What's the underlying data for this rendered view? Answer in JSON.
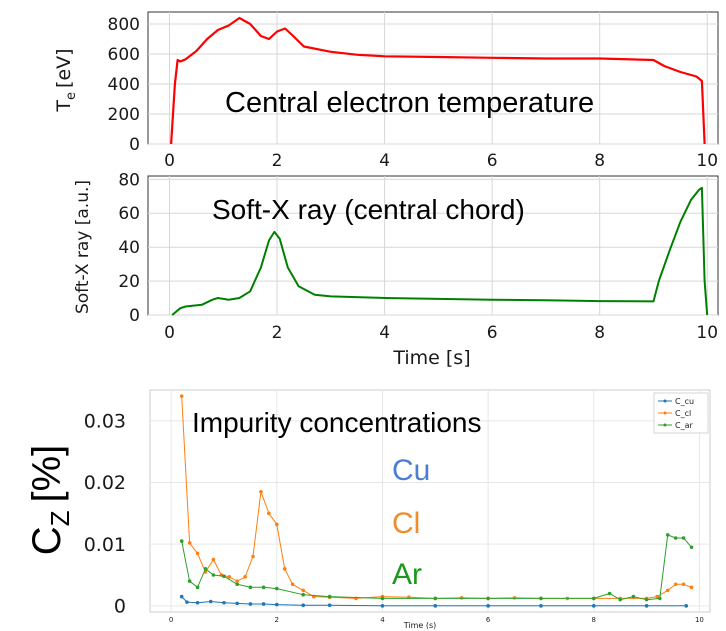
{
  "chart_data": [
    {
      "type": "line",
      "title": "Central electron temperature",
      "xlabel": "",
      "ylabel": "T_e [eV]",
      "ylabel_main": "T",
      "ylabel_sub": "e",
      "ylabel_unit": "[eV]",
      "xlim": [
        -0.4,
        10.2
      ],
      "ylim": [
        0,
        880
      ],
      "xticks": [
        0,
        2,
        4,
        6,
        8,
        10
      ],
      "xtick_labels": [
        "0",
        "2",
        "4",
        "6",
        "8",
        "10"
      ],
      "yticks": [
        0,
        200,
        400,
        600,
        800
      ],
      "ytick_labels": [
        "0",
        "200",
        "400",
        "600",
        "800"
      ],
      "grid": true,
      "series": [
        {
          "color": "#ff0000",
          "x": [
            0.03,
            0.1,
            0.15,
            0.2,
            0.3,
            0.5,
            0.7,
            0.9,
            1.1,
            1.3,
            1.5,
            1.7,
            1.85,
            2.0,
            2.15,
            2.3,
            2.5,
            3.0,
            3.5,
            4.0,
            5.0,
            6.0,
            7.0,
            8.0,
            9.0,
            9.2,
            9.5,
            9.8,
            9.9,
            9.95
          ],
          "values": [
            0,
            400,
            560,
            550,
            565,
            620,
            700,
            760,
            790,
            840,
            800,
            720,
            700,
            750,
            770,
            720,
            650,
            615,
            595,
            585,
            580,
            575,
            570,
            570,
            560,
            520,
            480,
            450,
            420,
            0
          ]
        }
      ]
    },
    {
      "type": "line",
      "title": "Soft-X ray (central chord)",
      "xlabel": "Time [s]",
      "ylabel": "Soft-X ray [a.u.]",
      "xlim": [
        -0.4,
        10.2
      ],
      "ylim": [
        0,
        82
      ],
      "xticks": [
        0,
        2,
        4,
        6,
        8,
        10
      ],
      "xtick_labels": [
        "0",
        "2",
        "4",
        "6",
        "8",
        "10"
      ],
      "yticks": [
        0,
        20,
        40,
        60,
        80
      ],
      "ytick_labels": [
        "0",
        "20",
        "40",
        "60",
        "80"
      ],
      "grid": true,
      "series": [
        {
          "color": "#008000",
          "x": [
            0.05,
            0.2,
            0.3,
            0.6,
            0.8,
            0.9,
            1.1,
            1.3,
            1.5,
            1.7,
            1.85,
            1.95,
            2.05,
            2.2,
            2.4,
            2.7,
            3.0,
            4.0,
            5.0,
            6.0,
            7.0,
            8.0,
            9.0,
            9.1,
            9.3,
            9.5,
            9.7,
            9.85,
            9.9,
            9.95,
            10.0
          ],
          "values": [
            0,
            4,
            5,
            6,
            9,
            10,
            9,
            10,
            14,
            28,
            44,
            49,
            45,
            28,
            17,
            12,
            11,
            10,
            9.5,
            9,
            8.7,
            8.2,
            8,
            20,
            38,
            55,
            68,
            74,
            75,
            20,
            0
          ]
        }
      ]
    },
    {
      "type": "line",
      "title": "Impurity concentrations",
      "xlabel": "Time (s)",
      "ylabel": "C_Z [%]",
      "ylabel_main": "C",
      "ylabel_sub": "Z",
      "ylabel_unit": "[%]",
      "xlim": [
        -0.4,
        10.2
      ],
      "ylim": [
        -0.001,
        0.035
      ],
      "xticks": [
        0,
        2,
        4,
        6,
        8,
        10
      ],
      "xtick_labels": [
        "0",
        "2",
        "4",
        "6",
        "8",
        "10"
      ],
      "yticks": [
        0,
        0.01,
        0.02,
        0.03
      ],
      "ytick_labels": [
        "0",
        "0.01",
        "0.02",
        "0.03"
      ],
      "grid": true,
      "legend_position": "top-right",
      "annotations": [
        {
          "text": "Cu",
          "color": "#4a7fd0"
        },
        {
          "text": "Cl",
          "color": "#f08c2a"
        },
        {
          "text": "Ar",
          "color": "#1a9a1a"
        }
      ],
      "series": [
        {
          "name": "C_cu",
          "color": "#1f77b4",
          "x": [
            0.2,
            0.3,
            0.5,
            0.75,
            1.0,
            1.25,
            1.5,
            1.75,
            2.0,
            2.5,
            3.0,
            4.0,
            5.0,
            6.0,
            7.0,
            8.0,
            9.0,
            9.75
          ],
          "values": [
            0.0015,
            0.0006,
            0.0005,
            0.0007,
            0.0005,
            0.0004,
            0.0003,
            0.0003,
            0.0002,
            0.0001,
            0.0001,
            0.0,
            0.0,
            0.0,
            0.0,
            0.0,
            0.0,
            0.0
          ]
        },
        {
          "name": "C_cl",
          "color": "#ff7f0e",
          "x": [
            0.2,
            0.35,
            0.5,
            0.65,
            0.8,
            0.95,
            1.1,
            1.25,
            1.4,
            1.55,
            1.7,
            1.85,
            2.0,
            2.15,
            2.3,
            2.5,
            2.7,
            3.0,
            3.5,
            4.0,
            4.5,
            5.0,
            5.5,
            6.0,
            6.5,
            7.0,
            7.5,
            8.0,
            8.5,
            9.0,
            9.2,
            9.4,
            9.55,
            9.7,
            9.85
          ],
          "values": [
            0.034,
            0.0102,
            0.0085,
            0.0055,
            0.0075,
            0.005,
            0.0047,
            0.004,
            0.0047,
            0.008,
            0.0185,
            0.015,
            0.0132,
            0.006,
            0.0035,
            0.0025,
            0.0015,
            0.0014,
            0.0012,
            0.0015,
            0.0014,
            0.0012,
            0.0013,
            0.0012,
            0.0013,
            0.0012,
            0.0012,
            0.0012,
            0.0012,
            0.0012,
            0.0015,
            0.0025,
            0.0035,
            0.0035,
            0.003
          ]
        },
        {
          "name": "C_ar",
          "color": "#2ca02c",
          "x": [
            0.2,
            0.35,
            0.5,
            0.65,
            0.8,
            1.0,
            1.25,
            1.5,
            1.75,
            2.0,
            2.5,
            3.0,
            4.0,
            5.0,
            6.0,
            7.0,
            8.0,
            8.3,
            8.5,
            8.75,
            9.0,
            9.25,
            9.4,
            9.55,
            9.7,
            9.85
          ],
          "values": [
            0.0105,
            0.004,
            0.003,
            0.006,
            0.005,
            0.0048,
            0.0035,
            0.003,
            0.003,
            0.0028,
            0.0018,
            0.0015,
            0.0012,
            0.0012,
            0.0012,
            0.0012,
            0.0012,
            0.002,
            0.001,
            0.0015,
            0.001,
            0.0012,
            0.0115,
            0.011,
            0.011,
            0.0095
          ]
        }
      ]
    }
  ]
}
